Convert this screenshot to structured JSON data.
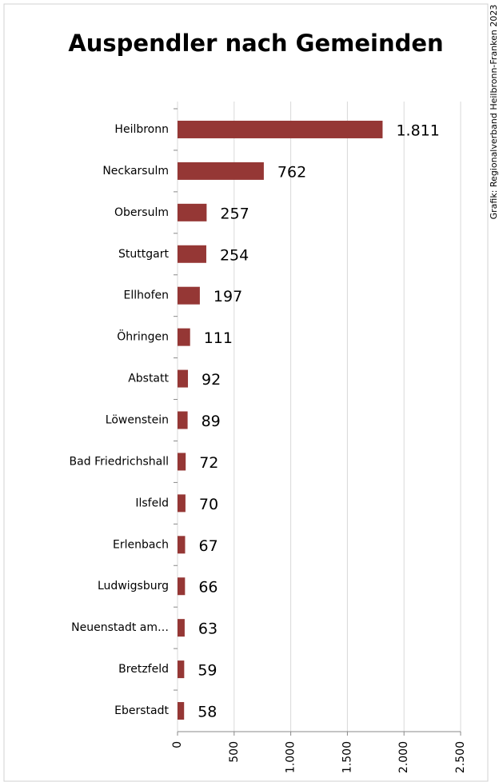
{
  "chart_data": {
    "type": "bar",
    "orientation": "horizontal",
    "title": "Auspendler nach Gemeinden",
    "source": "Grafik: Regionalverband Heilbronn-Franken 2023",
    "categories": [
      "Heilbronn",
      "Neckarsulm",
      "Obersulm",
      "Stuttgart",
      "Ellhofen",
      "Öhringen",
      "Abstatt",
      "Löwenstein",
      "Bad Friedrichshall",
      "Ilsfeld",
      "Erlenbach",
      "Ludwigsburg",
      "Neuenstadt am…",
      "Bretzfeld",
      "Eberstadt"
    ],
    "values": [
      1811,
      762,
      257,
      254,
      197,
      111,
      92,
      89,
      72,
      70,
      67,
      66,
      63,
      59,
      58
    ],
    "value_labels": [
      "1.811",
      "762",
      "257",
      "254",
      "197",
      "111",
      "92",
      "89",
      "72",
      "70",
      "67",
      "66",
      "63",
      "59",
      "58"
    ],
    "color": "#953735",
    "xlim": [
      0,
      2500
    ],
    "xticks": [
      0,
      500,
      {
        "value": 1000,
        "label": "1.000"
      },
      {
        "value": 1500,
        "label": "1.500"
      },
      {
        "value": 2000,
        "label": "2.000"
      },
      {
        "value": 2500,
        "label": "2.500"
      }
    ],
    "grid": true
  }
}
